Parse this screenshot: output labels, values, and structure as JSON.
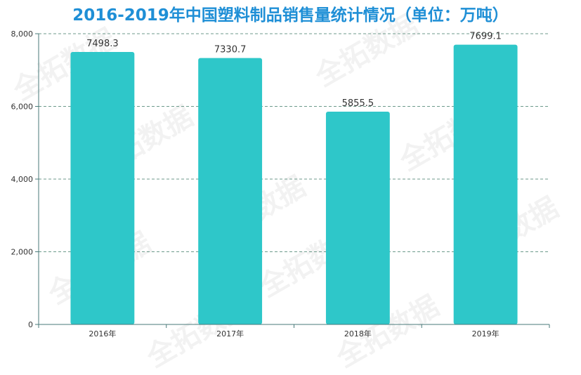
{
  "title": "2016-2019年中国塑料制品销售量统计情况（单位：万吨）",
  "watermark_text": "全拓数据",
  "colors": {
    "bar": "#2ec7c9",
    "title": "#1f8fd6",
    "grid": "#6c9a8b",
    "axis": "#4a7a7a"
  },
  "chart_data": {
    "type": "bar",
    "categories": [
      "2016年",
      "2017年",
      "2018年",
      "2019年"
    ],
    "values": [
      7498.3,
      7330.7,
      5855.5,
      7699.1
    ],
    "value_labels": [
      "7498.3",
      "7330.7",
      "5855.5",
      "7699.1"
    ],
    "y_ticks": [
      0,
      2000,
      4000,
      6000,
      8000
    ],
    "y_tick_labels": [
      "0",
      "2,000",
      "4,000",
      "6,000",
      "8,000"
    ],
    "ylim": [
      0,
      8000
    ],
    "grid": true,
    "legend": "none"
  }
}
